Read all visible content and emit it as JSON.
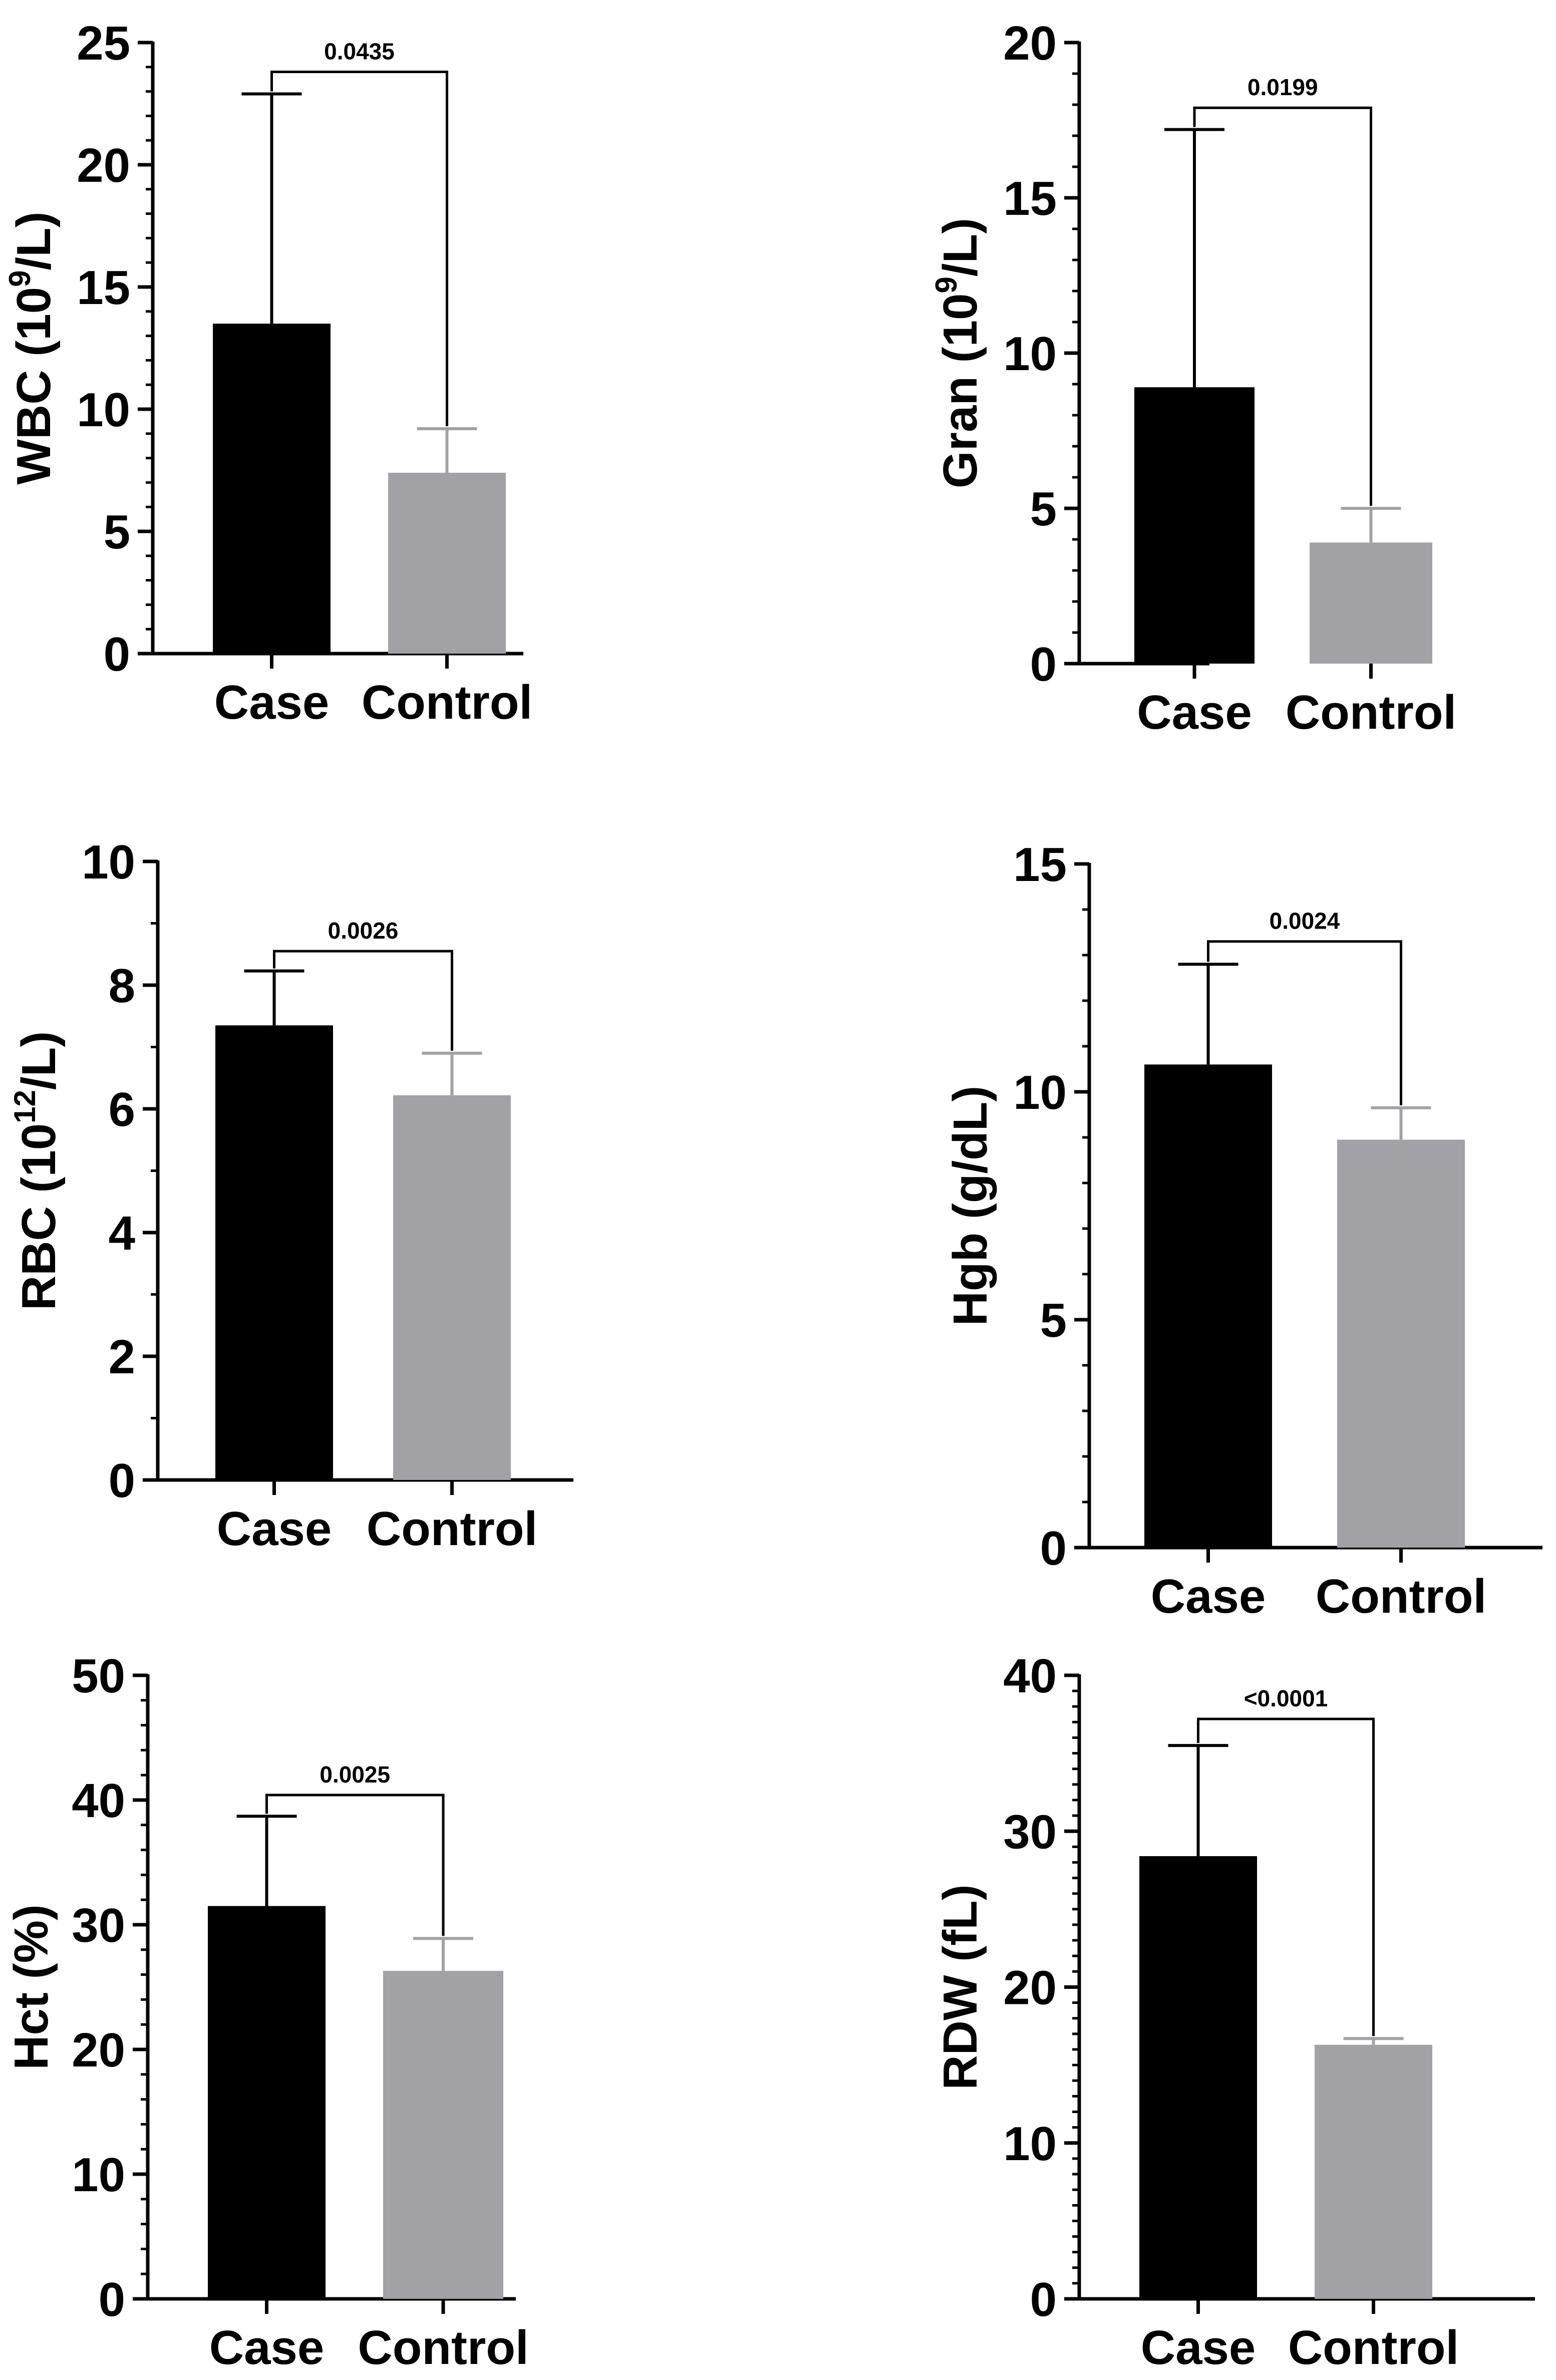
{
  "chart_data": [
    {
      "type": "bar",
      "ylabel": {
        "main": "WBC (10",
        "sup": "9",
        "tail": "/L)"
      },
      "categories": [
        "Case",
        "Control"
      ],
      "values": [
        13.5,
        7.4
      ],
      "errors": [
        9.4,
        1.8
      ],
      "colors": [
        "#000000",
        "#a2a2a6"
      ],
      "ylim": [
        0,
        25
      ],
      "yticks": [
        0,
        5,
        10,
        15,
        20,
        25
      ],
      "minor_step": 1,
      "pvalue": "0.0435",
      "bracket_y": 23.8
    },
    {
      "type": "bar",
      "ylabel": {
        "main": "Gran (10",
        "sup": "9",
        "tail": "/L)"
      },
      "categories": [
        "Case",
        "Control"
      ],
      "values": [
        8.9,
        3.9
      ],
      "errors": [
        8.3,
        1.1
      ],
      "colors": [
        "#000000",
        "#a2a2a6"
      ],
      "ylim": [
        0,
        20
      ],
      "yticks": [
        0,
        5,
        10,
        15,
        20
      ],
      "minor_step": 1,
      "pvalue": "0.0199",
      "bracket_y": 17.9
    },
    {
      "type": "bar",
      "ylabel": {
        "main": "RBC (10",
        "sup": "12",
        "tail": "/L)"
      },
      "categories": [
        "Case",
        "Control"
      ],
      "values": [
        7.35,
        6.22
      ],
      "errors": [
        0.88,
        0.68
      ],
      "colors": [
        "#000000",
        "#a2a2a6"
      ],
      "ylim": [
        0,
        10
      ],
      "yticks": [
        0,
        2,
        4,
        6,
        8,
        10
      ],
      "minor_step": 1,
      "pvalue": "0.0026",
      "bracket_y": 8.55
    },
    {
      "type": "bar",
      "ylabel": {
        "main": "Hgb (g/dL)",
        "sup": "",
        "tail": ""
      },
      "categories": [
        "Case",
        "Control"
      ],
      "values": [
        10.6,
        8.95
      ],
      "errors": [
        2.2,
        0.7
      ],
      "colors": [
        "#000000",
        "#a2a2a6"
      ],
      "ylim": [
        0,
        15
      ],
      "yticks": [
        0,
        5,
        10,
        15
      ],
      "minor_step": 1,
      "pvalue": "0.0024",
      "bracket_y": 13.3
    },
    {
      "type": "bar",
      "ylabel": {
        "main": "Hct (%)",
        "sup": "",
        "tail": ""
      },
      "categories": [
        "Case",
        "Control"
      ],
      "values": [
        31.5,
        26.3
      ],
      "errors": [
        7.2,
        2.6
      ],
      "colors": [
        "#000000",
        "#a2a2a6"
      ],
      "ylim": [
        0,
        50
      ],
      "yticks": [
        0,
        10,
        20,
        30,
        40,
        50
      ],
      "minor_step": 2,
      "pvalue": "0.0025",
      "bracket_y": 40.4
    },
    {
      "type": "bar",
      "ylabel": {
        "main": "RDW (fL)",
        "sup": "",
        "tail": ""
      },
      "categories": [
        "Case",
        "Control"
      ],
      "values": [
        28.4,
        16.3
      ],
      "errors": [
        7.1,
        0.4
      ],
      "colors": [
        "#000000",
        "#a2a2a6"
      ],
      "ylim": [
        0,
        40
      ],
      "yticks": [
        0,
        10,
        20,
        30,
        40
      ],
      "minor_step": 1,
      "pvalue": "<0.0001",
      "bracket_y": 37.2
    }
  ]
}
